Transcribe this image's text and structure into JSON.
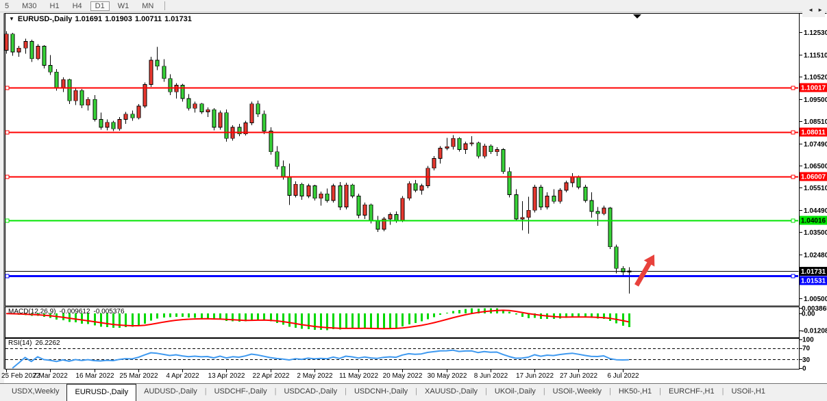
{
  "toolbar": {
    "timeframes": [
      {
        "label": "5",
        "selected": false
      },
      {
        "label": "M30",
        "selected": false
      },
      {
        "label": "H1",
        "selected": false
      },
      {
        "label": "H4",
        "selected": false
      },
      {
        "label": "D1",
        "selected": true
      },
      {
        "label": "W1",
        "selected": false
      },
      {
        "label": "MN",
        "selected": false
      }
    ]
  },
  "header": {
    "dropdown_icon": "▼",
    "symbol_period": "EURUSD-,Daily",
    "open": "1.01691",
    "high": "1.01903",
    "low": "1.00711",
    "close": "1.01731"
  },
  "chart_data": {
    "type": "candlestick",
    "symbol": "EURUSD-",
    "period": "Daily",
    "x_labels": [
      "25 Feb 2022",
      "7 Mar 2022",
      "16 Mar 2022",
      "25 Mar 2022",
      "4 Apr 2022",
      "13 Apr 2022",
      "22 Apr 2022",
      "2 May 2022",
      "11 May 2022",
      "20 May 2022",
      "30 May 2022",
      "8 Jun 2022",
      "17 Jun 2022",
      "27 Jun 2022",
      "6 Jul 2022"
    ],
    "x_label_interval": 7,
    "y_axis_labels": [
      "1.12530",
      "1.11510",
      "1.10520",
      "1.09500",
      "1.08510",
      "1.07490",
      "1.06500",
      "1.05510",
      "1.04490",
      "1.03500",
      "1.02480",
      "1.00500"
    ],
    "ylim": [
      1.0019,
      1.1332
    ],
    "candles": [
      [
        1.117,
        1.1256,
        1.1155,
        1.1243
      ],
      [
        1.1243,
        1.1248,
        1.1145,
        1.1162
      ],
      [
        1.1162,
        1.119,
        1.114,
        1.118
      ],
      [
        1.118,
        1.1222,
        1.1155,
        1.121
      ],
      [
        1.121,
        1.1218,
        1.1118,
        1.1132
      ],
      [
        1.1132,
        1.1198,
        1.1125,
        1.1188
      ],
      [
        1.1188,
        1.1193,
        1.1088,
        1.1102
      ],
      [
        1.1102,
        1.1148,
        1.1058,
        1.1072
      ],
      [
        1.1072,
        1.1085,
        1.0988,
        1.1002
      ],
      [
        1.1002,
        1.1048,
        1.0982,
        1.1038
      ],
      [
        1.1038,
        1.1042,
        1.0928,
        1.0942
      ],
      [
        1.0942,
        1.0998,
        1.0922,
        1.0988
      ],
      [
        1.0988,
        1.0995,
        1.0908,
        1.0922
      ],
      [
        1.0922,
        1.0958,
        1.0898,
        1.0948
      ],
      [
        1.0948,
        1.0968,
        1.0848,
        1.0858
      ],
      [
        1.0858,
        1.0888,
        1.0812,
        1.0822
      ],
      [
        1.0822,
        1.0858,
        1.0808,
        1.0845
      ],
      [
        1.0845,
        1.0852,
        1.0806,
        1.0815
      ],
      [
        1.0815,
        1.0868,
        1.0807,
        1.0858
      ],
      [
        1.0858,
        1.0892,
        1.0838,
        1.0882
      ],
      [
        1.0882,
        1.0898,
        1.0852,
        1.0865
      ],
      [
        1.0865,
        1.0928,
        1.0858,
        1.0918
      ],
      [
        1.0918,
        1.1025,
        1.0908,
        1.1015
      ],
      [
        1.1015,
        1.114,
        1.1005,
        1.1125
      ],
      [
        1.1125,
        1.1185,
        1.108,
        1.1098
      ],
      [
        1.1098,
        1.113,
        1.1028,
        1.1042
      ],
      [
        1.1042,
        1.1062,
        1.0968,
        1.0982
      ],
      [
        1.0982,
        1.1022,
        1.0952,
        1.1012
      ],
      [
        1.1012,
        1.1018,
        1.0938,
        1.0952
      ],
      [
        1.0952,
        1.0972,
        1.0898,
        1.0908
      ],
      [
        1.0908,
        1.0938,
        1.0888,
        1.0928
      ],
      [
        1.0928,
        1.0932,
        1.0882,
        1.0892
      ],
      [
        1.0892,
        1.0912,
        1.0868,
        1.0902
      ],
      [
        1.0902,
        1.0908,
        1.0808,
        1.0822
      ],
      [
        1.0822,
        1.0898,
        1.0812,
        1.0888
      ],
      [
        1.0888,
        1.0902,
        1.0758,
        1.0772
      ],
      [
        1.0772,
        1.0832,
        1.0762,
        1.0822
      ],
      [
        1.0822,
        1.0838,
        1.0782,
        1.0792
      ],
      [
        1.0792,
        1.0852,
        1.0785,
        1.0842
      ],
      [
        1.0842,
        1.0938,
        1.0832,
        1.0928
      ],
      [
        1.0928,
        1.0942,
        1.0868,
        1.0882
      ],
      [
        1.0882,
        1.0898,
        1.0792,
        1.0805
      ],
      [
        1.0805,
        1.0822,
        1.0698,
        1.0712
      ],
      [
        1.0712,
        1.0738,
        1.0632,
        1.0645
      ],
      [
        1.0645,
        1.0672,
        1.0586,
        1.0598
      ],
      [
        1.0598,
        1.0658,
        1.0472,
        1.0515
      ],
      [
        1.0515,
        1.0578,
        1.0505,
        1.0565
      ],
      [
        1.0565,
        1.0572,
        1.0495,
        1.0512
      ],
      [
        1.0512,
        1.0568,
        1.0502,
        1.0558
      ],
      [
        1.0558,
        1.0562,
        1.0492,
        1.0502
      ],
      [
        1.0502,
        1.0532,
        1.0468,
        1.0522
      ],
      [
        1.0522,
        1.0545,
        1.0482,
        1.0492
      ],
      [
        1.0492,
        1.0568,
        1.0482,
        1.0558
      ],
      [
        1.0558,
        1.0575,
        1.0448,
        1.0462
      ],
      [
        1.0462,
        1.0572,
        1.0452,
        1.0562
      ],
      [
        1.0562,
        1.0568,
        1.0502,
        1.0512
      ],
      [
        1.0512,
        1.0522,
        1.0412,
        1.0425
      ],
      [
        1.0425,
        1.0482,
        1.0408,
        1.0472
      ],
      [
        1.0472,
        1.0478,
        1.0388,
        1.0398
      ],
      [
        1.0398,
        1.0422,
        1.0349,
        1.0362
      ],
      [
        1.0362,
        1.0418,
        1.0352,
        1.0408
      ],
      [
        1.0408,
        1.0438,
        1.0382,
        1.0428
      ],
      [
        1.0428,
        1.0442,
        1.0392,
        1.0402
      ],
      [
        1.0402,
        1.0512,
        1.0395,
        1.0502
      ],
      [
        1.0502,
        1.0578,
        1.0492,
        1.0568
      ],
      [
        1.0568,
        1.0585,
        1.0528,
        1.0538
      ],
      [
        1.0538,
        1.0568,
        1.0518,
        1.0558
      ],
      [
        1.0558,
        1.0648,
        1.0548,
        1.0638
      ],
      [
        1.0638,
        1.0692,
        1.0628,
        1.0682
      ],
      [
        1.0682,
        1.0738,
        1.0658,
        1.0728
      ],
      [
        1.0728,
        1.0774,
        1.0718,
        1.0735
      ],
      [
        1.0735,
        1.0786,
        1.0722,
        1.0772
      ],
      [
        1.0772,
        1.0778,
        1.0712,
        1.0722
      ],
      [
        1.0722,
        1.0758,
        1.0702,
        1.0748
      ],
      [
        1.0748,
        1.0782,
        1.0738,
        1.0752
      ],
      [
        1.0752,
        1.0758,
        1.0682,
        1.0692
      ],
      [
        1.0692,
        1.0748,
        1.0682,
        1.0738
      ],
      [
        1.0738,
        1.0745,
        1.0702,
        1.0712
      ],
      [
        1.0712,
        1.0732,
        1.0692,
        1.0722
      ],
      [
        1.0722,
        1.0728,
        1.0612,
        1.0622
      ],
      [
        1.0622,
        1.0642,
        1.0506,
        1.0518
      ],
      [
        1.0518,
        1.0542,
        1.0398,
        1.0408
      ],
      [
        1.0408,
        1.0488,
        1.0358,
        1.0415
      ],
      [
        1.0415,
        1.0508,
        1.0342,
        1.0448
      ],
      [
        1.0448,
        1.0562,
        1.0438,
        1.0552
      ],
      [
        1.0552,
        1.0562,
        1.0448,
        1.0462
      ],
      [
        1.0462,
        1.0528,
        1.0452,
        1.0512
      ],
      [
        1.0512,
        1.0542,
        1.0478,
        1.0488
      ],
      [
        1.0488,
        1.0548,
        1.0478,
        1.0538
      ],
      [
        1.0538,
        1.0582,
        1.0528,
        1.0572
      ],
      [
        1.0572,
        1.0615,
        1.0552,
        1.0598
      ],
      [
        1.0598,
        1.0605,
        1.0542,
        1.0552
      ],
      [
        1.0552,
        1.0562,
        1.0482,
        1.0492
      ],
      [
        1.0492,
        1.0528,
        1.0415,
        1.0442
      ],
      [
        1.0442,
        1.0462,
        1.0378,
        1.0432
      ],
      [
        1.0432,
        1.0468,
        1.0425,
        1.0458
      ],
      [
        1.0458,
        1.0462,
        1.0272,
        1.0282
      ],
      [
        1.0282,
        1.0292,
        1.0162,
        1.0185
      ],
      [
        1.0185,
        1.0195,
        1.0148,
        1.0168
      ],
      [
        1.01691,
        1.01903,
        1.00711,
        1.01731
      ]
    ],
    "hlines": [
      {
        "label": "1.10017",
        "value": 1.10017,
        "color": "#FF0000",
        "label_text_color": "#FFFFFF",
        "line_width": 2
      },
      {
        "label": "1.08011",
        "value": 1.08011,
        "color": "#FF0000",
        "label_text_color": "#FFFFFF",
        "line_width": 2
      },
      {
        "label": "1.06007",
        "value": 1.06007,
        "color": "#FF0000",
        "label_text_color": "#FFFFFF",
        "line_width": 2
      },
      {
        "label": "1.04016",
        "value": 1.04016,
        "color": "#00E400",
        "label_text_color": "#000000",
        "line_width": 2
      },
      {
        "label": "1.01531",
        "value": 1.01531,
        "color": "#0000FF",
        "label_text_color": "#FFFFFF",
        "line_width": 3,
        "stack_offset": 7
      }
    ],
    "price_marker": {
      "label": "1.01731",
      "value": 1.01731,
      "color": "#000000",
      "label_text_color": "#FFFFFF"
    },
    "indicators": {
      "macd": {
        "label": "MACD(12,26,9)",
        "readout_main": "-0.009612",
        "readout_signal": "-0.005376",
        "params": [
          12,
          26,
          9
        ],
        "axis_labels": [
          "0.003865",
          "0.00",
          "-0.01208"
        ],
        "ylim": [
          -0.0165,
          0.004
        ],
        "hist_color": "#00D800",
        "signal_color": "#FF0000"
      },
      "rsi": {
        "label": "RSI(14)",
        "readout": "26.2262",
        "period": 14,
        "axis_labels": [
          "100",
          "70",
          "30",
          "0"
        ],
        "levels": [
          70,
          30
        ],
        "ylim": [
          0,
          100
        ],
        "color": "#3E99F0"
      }
    },
    "annotations": {
      "trend_arrow": {
        "from": [
          929,
          417
        ],
        "to": [
          955,
          372
        ],
        "color": "#E8423C"
      },
      "last_bar_marker_x": 930
    },
    "colors": {
      "up": "#E7382F",
      "down": "#38D338",
      "wick": "#000000",
      "background": "#FFFFFF",
      "border": "#000000"
    }
  },
  "bottom_tabs": {
    "tabs": [
      {
        "label": "USDX,Weekly",
        "active": false
      },
      {
        "label": "EURUSD-,Daily",
        "active": true
      },
      {
        "label": "AUDUSD-,Daily",
        "active": false
      },
      {
        "label": "USDCHF-,Daily",
        "active": false
      },
      {
        "label": "USDCAD-,Daily",
        "active": false
      },
      {
        "label": "USDCNH-,Daily",
        "active": false
      },
      {
        "label": "XAUUSD-,Daily",
        "active": false
      },
      {
        "label": "UKOil-,Daily",
        "active": false
      },
      {
        "label": "USOil-,Weekly",
        "active": false
      },
      {
        "label": "HK50-,H1",
        "active": false
      },
      {
        "label": "EURCHF-,H1",
        "active": false
      },
      {
        "label": "USOil-,H1",
        "active": false
      }
    ],
    "divider": "|",
    "scroll_left_icon": "◄",
    "scroll_right_icon": "►"
  }
}
